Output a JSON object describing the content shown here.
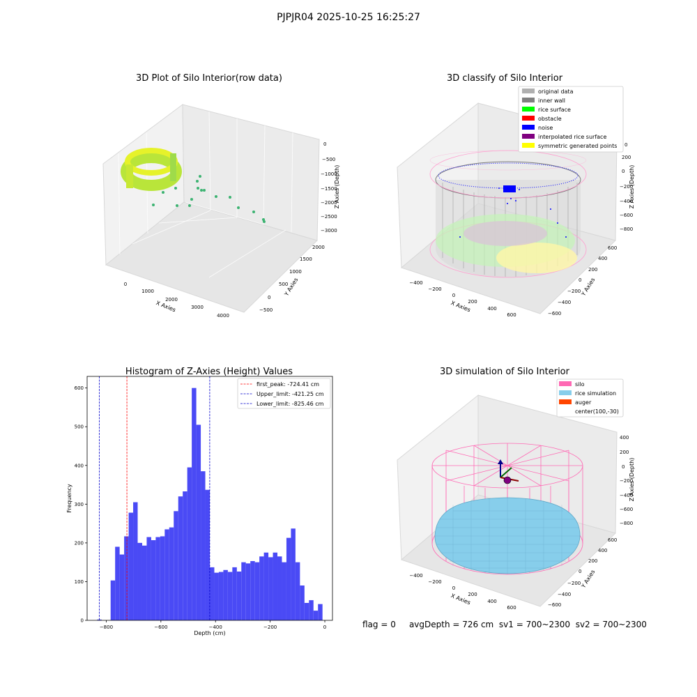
{
  "suptitle": "PJPJR04 2025-10-25 16:25:27",
  "footer": {
    "flag": "flag = 0",
    "avg_depth": "avgDepth = 726 cm",
    "sv1": "sv1 = 700~2300",
    "sv2": "sv2 = 700~2300"
  },
  "colors": {
    "hist_bar": "#4a4af5",
    "first_peak": "#ff0000",
    "limit": "#0000cc",
    "silo": "#ff69b4",
    "rice": "#87ceeb",
    "auger": "#ff4500",
    "inner_wall": "#808080",
    "rice_surface": "#00ff00",
    "obstacle": "#ff0000",
    "noise": "#0000ff",
    "interpolated": "#800080",
    "symmetric": "#ffff00",
    "original": "#b0b0b0"
  },
  "chart_data": [
    {
      "type": "scatter3d",
      "title": "3D Plot of Silo Interior(row data)",
      "xlabel": "X Axies",
      "ylabel": "Y Axies",
      "zlabel": "Z Axies (Depth)",
      "xticks": [
        "0",
        "1000",
        "2000",
        "3000",
        "4000"
      ],
      "yticks": [
        "−500",
        "0",
        "500",
        "1000",
        "1500",
        "2000"
      ],
      "zticks": [
        "0",
        "−500",
        "−1000",
        "−1500",
        "−2000",
        "−2500",
        "−3000"
      ]
    },
    {
      "type": "scatter3d",
      "title": "3D classify of Silo Interior",
      "xlabel": "X Axies",
      "ylabel": "Y Axies",
      "zlabel": "Z Axies (Depth)",
      "xticks": [
        "−400",
        "−200",
        "0",
        "200",
        "400",
        "600"
      ],
      "yticks": [
        "−600",
        "−400",
        "−200",
        "0",
        "200",
        "400",
        "600"
      ],
      "zticks": [
        "200",
        "0",
        "−200",
        "−400",
        "−600",
        "−800"
      ],
      "zticks_partial": "0",
      "legend": [
        "original data",
        "inner wall",
        "rice surface",
        "obstacle",
        "noise",
        "interpolated rice surface",
        "symmetric generated points"
      ],
      "legend_loc": "top-right"
    },
    {
      "type": "bar",
      "title": "Histogram of Z-Axies (Height) Values",
      "xlabel": "Depth (cm)",
      "ylabel": "Frequency",
      "bin_start": -850,
      "bin_width": 16.5,
      "values": [
        0,
        2,
        0,
        0,
        103,
        190,
        170,
        217,
        278,
        305,
        200,
        193,
        215,
        207,
        215,
        217,
        235,
        240,
        282,
        320,
        333,
        395,
        600,
        505,
        385,
        337,
        137,
        123,
        125,
        130,
        125,
        137,
        126,
        150,
        147,
        153,
        150,
        165,
        175,
        163,
        175,
        165,
        150,
        213,
        237,
        150,
        90,
        45,
        52,
        25,
        42
      ],
      "xlim": [
        -870,
        28
      ],
      "ylim": [
        0,
        630
      ],
      "xticks": [
        -800,
        -600,
        -400,
        -200,
        0
      ],
      "yticks": [
        0,
        100,
        200,
        300,
        400,
        500,
        600
      ],
      "xtick_labels": [
        "−800",
        "−600",
        "−400",
        "−200",
        "0"
      ],
      "lines": [
        {
          "name": "first_peak: -724.41 cm",
          "x": -724.41,
          "style": "red"
        },
        {
          "name": "Upper_limit: -421.25 cm",
          "x": -421.25,
          "style": "blue"
        },
        {
          "name": "Lower_limit: -825.46 cm",
          "x": -825.46,
          "style": "blue"
        }
      ],
      "legend_loc": "top-right"
    },
    {
      "type": "surface3d",
      "title": "3D simulation of Silo Interior",
      "xlabel": "X Axies",
      "ylabel": "Y Axies",
      "zlabel": "Z Axies (Depth)",
      "xticks": [
        "−400",
        "−200",
        "0",
        "200",
        "400",
        "600"
      ],
      "yticks": [
        "−600",
        "−400",
        "−200",
        "0",
        "200",
        "400",
        "600"
      ],
      "zticks": [
        "400",
        "200",
        "0",
        "−200",
        "−400",
        "−600",
        "−800"
      ],
      "legend": [
        "silo",
        "rice simulation",
        "auger",
        "center(100,-30)"
      ],
      "legend_loc": "top-right"
    }
  ]
}
